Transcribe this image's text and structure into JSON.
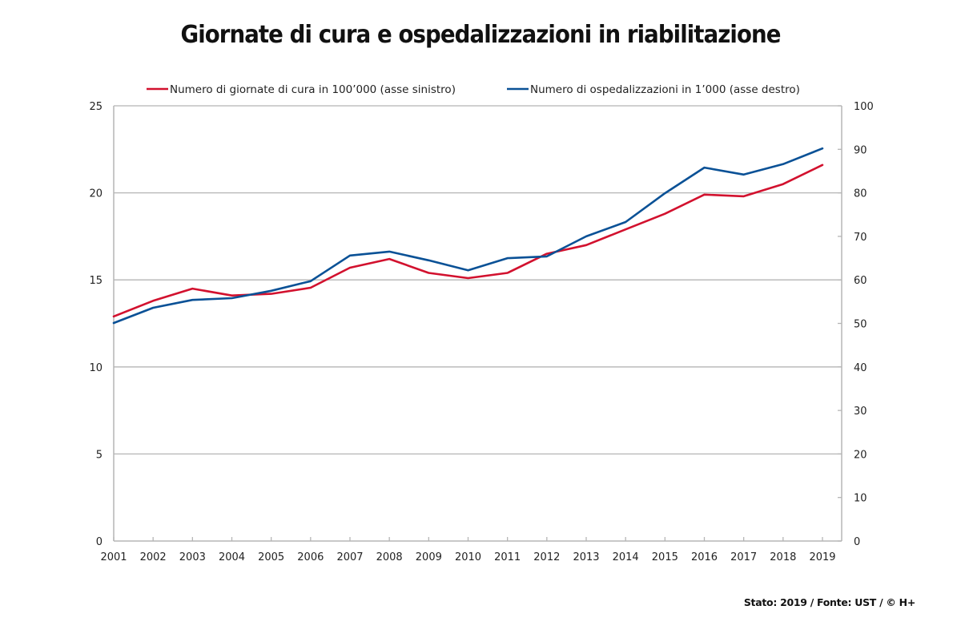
{
  "chart_data": {
    "type": "line",
    "title": "Giornate di cura e ospedalizzazioni in riabilitazione",
    "source_note": "Stato: 2019 / Fonte: UST / © H+",
    "x": [
      "2001",
      "2002",
      "2003",
      "2004",
      "2005",
      "2006",
      "2007",
      "2008",
      "2009",
      "2010",
      "2011",
      "2012",
      "2013",
      "2014",
      "2015",
      "2016",
      "2017",
      "2018",
      "2019"
    ],
    "xlabel": "",
    "y_left": {
      "label": "",
      "range": [
        0,
        25
      ],
      "ticks": [
        0,
        5,
        10,
        15,
        20,
        25
      ]
    },
    "y_right": {
      "label": "",
      "range": [
        0,
        100
      ],
      "ticks": [
        0,
        10,
        20,
        30,
        40,
        50,
        60,
        70,
        80,
        90,
        100
      ]
    },
    "grid": true,
    "legend_position": "top",
    "series": [
      {
        "name": "Numero di giornate di cura in 100’000 (asse sinistro)",
        "axis": "left",
        "color": "#d2112e",
        "values": [
          12.9,
          13.8,
          14.5,
          14.1,
          14.2,
          14.55,
          15.7,
          16.2,
          15.4,
          15.1,
          15.4,
          16.5,
          17.0,
          17.9,
          18.8,
          19.9,
          19.8,
          20.5,
          21.6
        ]
      },
      {
        "name": "Numero di ospedalizzazioni in 1’000 (asse destro)",
        "axis": "right",
        "color": "#0a5196",
        "values": [
          50.1,
          53.6,
          55.4,
          55.8,
          57.5,
          59.7,
          65.6,
          66.5,
          64.5,
          62.2,
          65.0,
          65.4,
          70.0,
          73.3,
          79.9,
          85.8,
          84.2,
          86.6,
          90.2
        ]
      }
    ]
  }
}
